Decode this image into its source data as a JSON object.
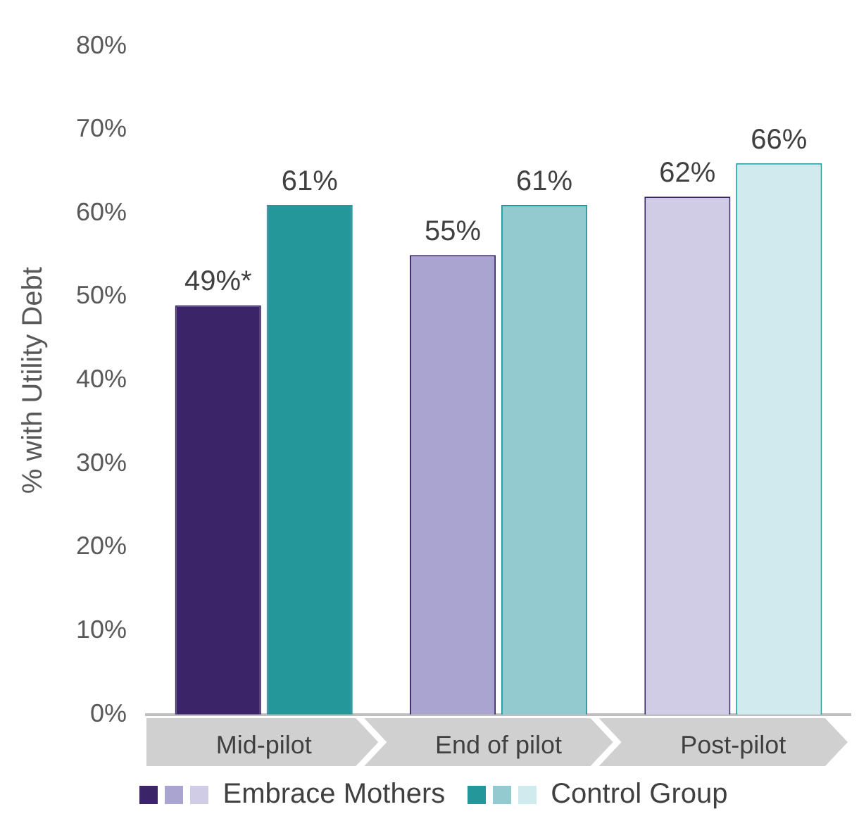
{
  "chart_data": {
    "type": "bar",
    "ylabel": "% with Utility Debt",
    "categories": [
      "Mid-pilot",
      "End of pilot",
      "Post-pilot"
    ],
    "series": [
      {
        "name": "Embrace Mothers",
        "colors": [
          "#3b2568",
          "#aaa4d1",
          "#d0cce5"
        ],
        "color": "#3b2568",
        "values": [
          49,
          55,
          62
        ],
        "value_labels": [
          "49%*",
          "55%",
          "62%"
        ]
      },
      {
        "name": "Control Group",
        "colors": [
          "#23979a",
          "#93cacf",
          "#d1eaed"
        ],
        "color": "#23979a",
        "values": [
          61,
          61,
          66
        ],
        "value_labels": [
          "61%",
          "61%",
          "66%"
        ]
      }
    ],
    "ylim": [
      0,
      80
    ],
    "yticks": [
      {
        "value": 0,
        "label": "0%"
      },
      {
        "value": 10,
        "label": "10%"
      },
      {
        "value": 20,
        "label": "20%"
      },
      {
        "value": 30,
        "label": "30%"
      },
      {
        "value": 40,
        "label": "40%"
      },
      {
        "value": 50,
        "label": "50%"
      },
      {
        "value": 60,
        "label": "60%"
      },
      {
        "value": 70,
        "label": "70%"
      },
      {
        "value": 80,
        "label": "80%"
      }
    ],
    "grid": false,
    "legend": "bottom"
  }
}
